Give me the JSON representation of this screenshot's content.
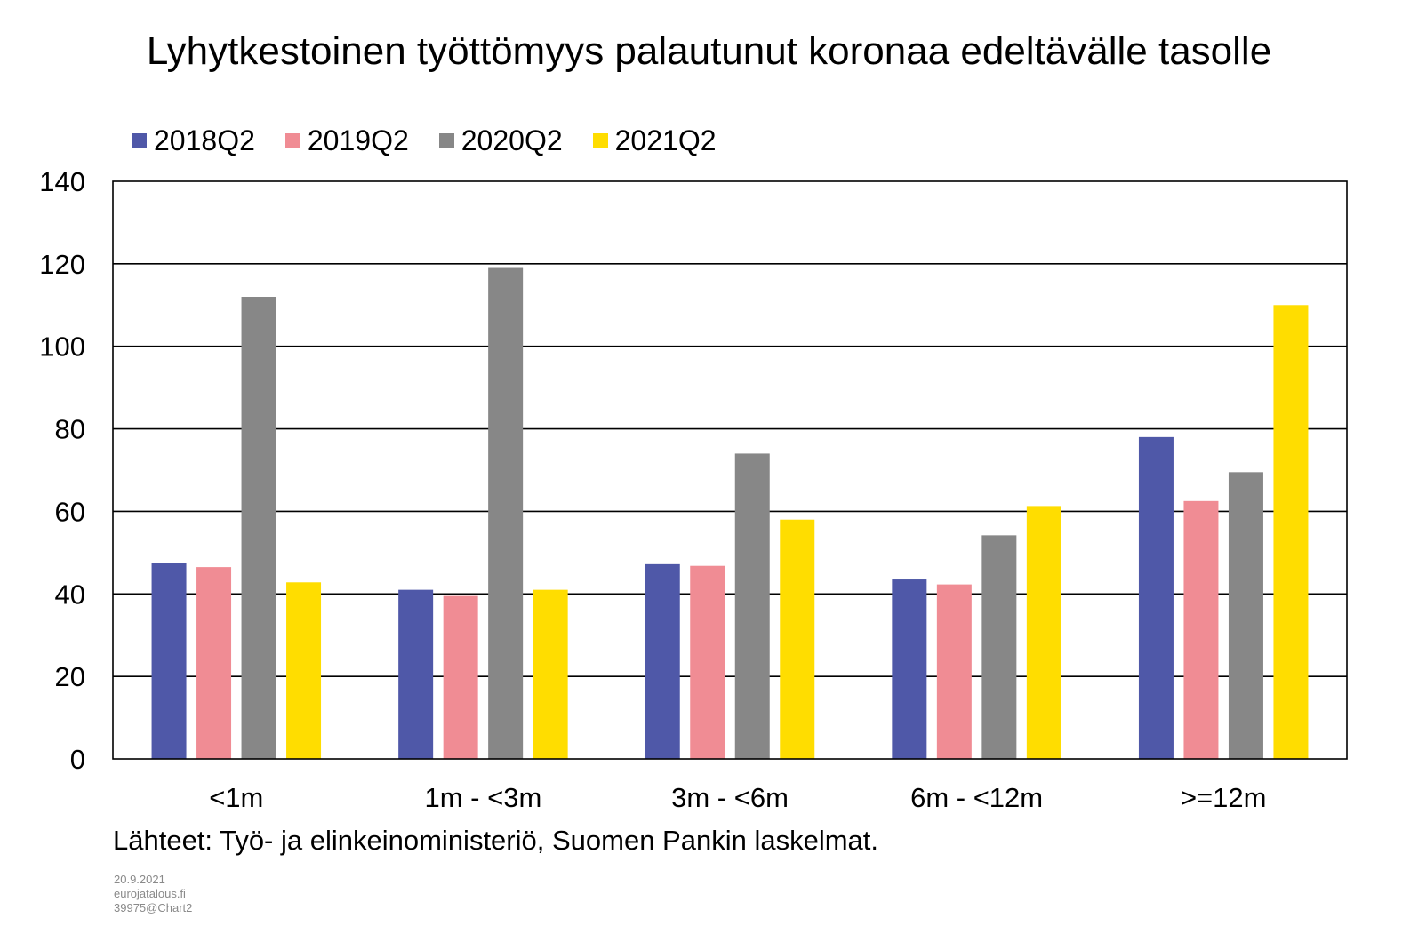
{
  "chart_data": {
    "type": "bar",
    "title": "Lyhytkestoinen työttömyys palautunut koronaa edeltävälle tasolle",
    "categories": [
      "<1m",
      "1m - <3m",
      "3m - <6m",
      "6m - <12m",
      ">=12m"
    ],
    "series": [
      {
        "name": "2018Q2",
        "color": "#4f58a8",
        "values": [
          47.5,
          41,
          47.2,
          43.5,
          78
        ]
      },
      {
        "name": "2019Q2",
        "color": "#f08c94",
        "values": [
          46.5,
          39.5,
          46.8,
          42.3,
          62.5
        ]
      },
      {
        "name": "2020Q2",
        "color": "#878787",
        "values": [
          112,
          119,
          74,
          54.2,
          69.5
        ]
      },
      {
        "name": "2021Q2",
        "color": "#ffdd00",
        "values": [
          42.8,
          41,
          58,
          61.3,
          110
        ]
      }
    ],
    "ylim": [
      0,
      140
    ],
    "yticks": [
      0,
      20,
      40,
      60,
      80,
      100,
      120,
      140
    ],
    "grid": true,
    "legend_position": "top-left"
  },
  "source_text": "Lähteet:  Työ-  ja elinkeinoministeriö,  Suomen Pankin laskelmat.",
  "footer": {
    "date": "20.9.2021",
    "site": "eurojatalous.fi",
    "code": "39975@Chart2"
  }
}
